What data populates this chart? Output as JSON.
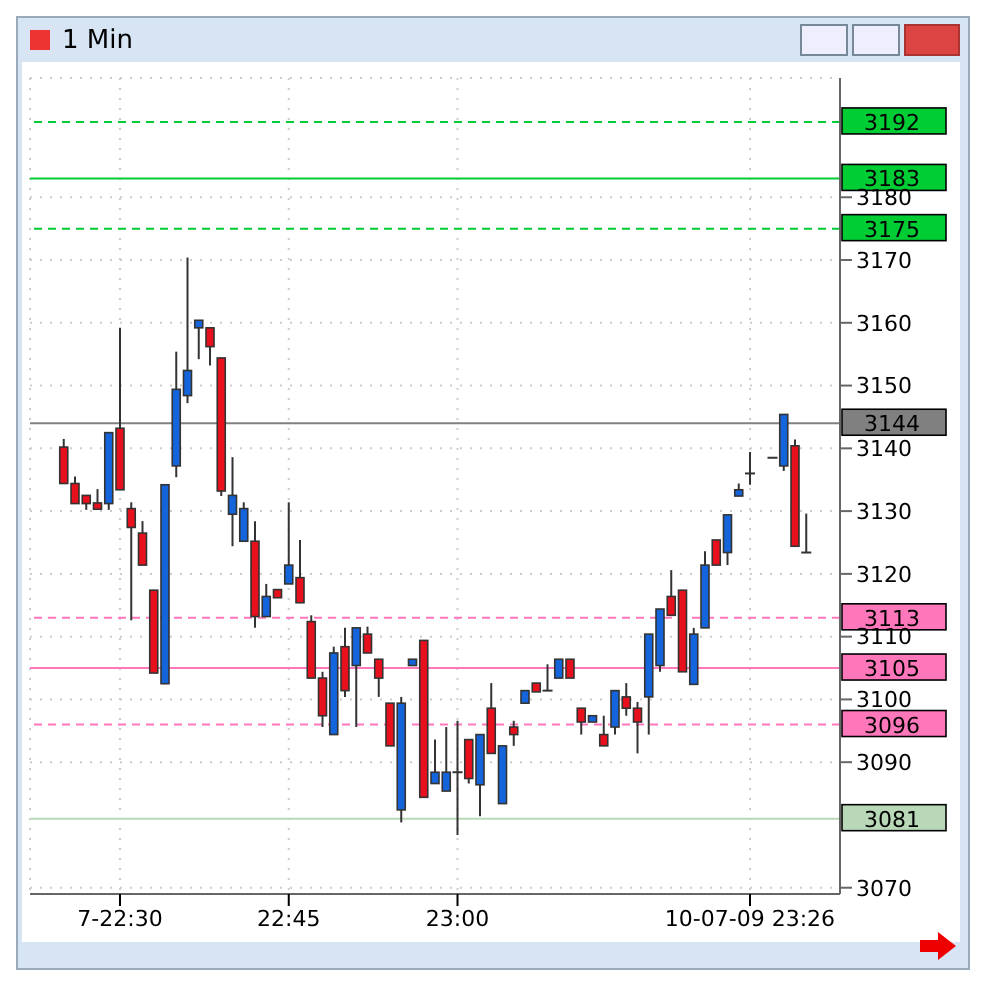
{
  "chart_data": {
    "type": "candlestick",
    "title": "1 Min",
    "categories": [
      null,
      null,
      null,
      null,
      null,
      "7-22:30",
      null,
      null,
      null,
      null,
      null,
      null,
      null,
      null,
      null,
      null,
      null,
      null,
      null,
      null,
      "22:45",
      null,
      null,
      null,
      null,
      null,
      null,
      null,
      null,
      null,
      null,
      null,
      null,
      null,
      null,
      "23:00",
      null,
      null,
      null,
      null,
      null,
      null,
      null,
      null,
      null,
      null,
      null,
      null,
      null,
      null,
      null,
      null,
      null,
      null,
      null,
      null,
      null,
      null,
      null,
      null,
      null,
      "10-07-09 23:26",
      null,
      null,
      null,
      null,
      null
    ],
    "ohlc": [
      [
        3140.2,
        3141.5,
        3134.4,
        3134.4
      ],
      [
        3134.4,
        3135.5,
        3131.2,
        3131.2
      ],
      [
        3132.5,
        3132.5,
        3130.2,
        3131.2
      ],
      [
        3131.3,
        3133.5,
        3130.3,
        3130.3
      ],
      [
        3131.2,
        3142.5,
        3130.2,
        3142.5
      ],
      [
        3143.2,
        3159.2,
        3133.4,
        3133.4
      ],
      [
        3130.4,
        3131.4,
        3112.6,
        3127.4
      ],
      [
        3126.5,
        3128.4,
        3121.4,
        3121.4
      ],
      [
        3117.4,
        3117.4,
        3104.2,
        3104.2
      ],
      [
        3102.5,
        3134.2,
        3102.5,
        3134.2
      ],
      [
        3137.2,
        3155.4,
        3135.4,
        3149.4
      ],
      [
        3148.4,
        3170.4,
        3147.2,
        3152.4
      ],
      [
        3159.2,
        3160.4,
        3154.2,
        3160.4
      ],
      [
        3159.2,
        3159.2,
        3153.2,
        3156.2
      ],
      [
        3154.4,
        3154.4,
        3132.4,
        3133.2
      ],
      [
        3129.5,
        3138.6,
        3124.4,
        3132.5
      ],
      [
        3125.2,
        3131.4,
        3125.2,
        3130.4
      ],
      [
        3125.2,
        3128.4,
        3111.4,
        3113.2
      ],
      [
        3113.2,
        3118.4,
        3113.2,
        3116.4
      ],
      [
        3117.5,
        3117.5,
        3116.2,
        3116.2
      ],
      [
        3118.4,
        3131.4,
        3118.4,
        3121.4
      ],
      [
        3119.4,
        3125.4,
        3115.4,
        3115.4
      ],
      [
        3112.4,
        3113.4,
        3103.4,
        3103.4
      ],
      [
        3103.4,
        3104.4,
        3095.6,
        3097.4
      ],
      [
        3094.4,
        3108.4,
        3094.4,
        3107.4
      ],
      [
        3108.4,
        3111.4,
        3100.4,
        3101.4
      ],
      [
        3105.4,
        3111.4,
        3095.6,
        3111.4
      ],
      [
        3110.4,
        3111.6,
        3107.4,
        3107.4
      ],
      [
        3106.4,
        3106.4,
        3100.4,
        3103.4
      ],
      [
        3099.4,
        3099.4,
        3092.6,
        3092.6
      ],
      [
        3082.4,
        3100.4,
        3080.4,
        3099.4
      ],
      [
        3105.4,
        3106.4,
        3105.4,
        3106.4
      ],
      [
        3109.4,
        3109.4,
        3084.4,
        3084.4
      ],
      [
        3086.6,
        3093.6,
        3086.6,
        3088.4
      ],
      [
        3085.4,
        3095.6,
        3085.4,
        3088.4
      ],
      [
        3088.4,
        3096.6,
        3078.4,
        3088.4
      ],
      [
        3093.6,
        3093.6,
        3086.6,
        3087.4
      ],
      [
        3086.4,
        3094.4,
        3081.4,
        3094.4
      ],
      [
        3098.6,
        3102.6,
        3091.4,
        3091.4
      ],
      [
        3083.4,
        3092.6,
        3083.4,
        3092.6
      ],
      [
        3095.6,
        3096.6,
        3092.6,
        3094.4
      ],
      [
        3099.4,
        3101.4,
        3099.4,
        3101.4
      ],
      [
        3102.6,
        3102.6,
        3101.2,
        3101.2
      ],
      [
        3101.4,
        3105.6,
        3101.4,
        3101.4
      ],
      [
        3103.4,
        3106.4,
        3103.4,
        3106.4
      ],
      [
        3106.4,
        3106.4,
        3103.4,
        3103.4
      ],
      [
        3098.6,
        3098.6,
        3094.4,
        3096.4
      ],
      [
        3096.4,
        3097.4,
        3096.4,
        3097.4
      ],
      [
        3094.4,
        3097.4,
        3092.6,
        3092.6
      ],
      [
        3095.6,
        3101.4,
        3094.4,
        3101.4
      ],
      [
        3100.4,
        3102.6,
        3097.4,
        3098.6
      ],
      [
        3098.6,
        3099.6,
        3091.4,
        3096.4
      ],
      [
        3100.4,
        3110.4,
        3094.4,
        3110.4
      ],
      [
        3105.4,
        3114.4,
        3104.4,
        3114.4
      ],
      [
        3116.4,
        3120.6,
        3113.4,
        3113.4
      ],
      [
        3117.4,
        3117.4,
        3104.4,
        3104.4
      ],
      [
        3102.4,
        3111.4,
        3102.4,
        3110.4
      ],
      [
        3111.4,
        3123.6,
        3111.4,
        3121.4
      ],
      [
        3125.4,
        3125.4,
        3121.4,
        3121.4
      ],
      [
        3123.4,
        3129.4,
        3121.4,
        3129.4
      ],
      [
        3132.4,
        3134.4,
        3132.4,
        3133.4
      ],
      [
        3136.0,
        3139.4,
        3134.2,
        3136.0
      ],
      null,
      [
        3138.5,
        3138.5,
        3138.5,
        3138.5
      ],
      [
        3137.2,
        3145.4,
        3136.4,
        3145.4
      ],
      [
        3140.4,
        3141.4,
        3124.4,
        3124.4
      ],
      [
        3123.4,
        3129.6,
        3123.4,
        3123.4
      ]
    ],
    "colors": [
      "#e8101c",
      "#e8101c",
      "#e8101c",
      "#e8101c",
      "#1464dc",
      "#e8101c",
      "#e8101c",
      "#e8101c",
      "#e8101c",
      "#1464dc",
      "#1464dc",
      "#1464dc",
      "#1464dc",
      "#e8101c",
      "#e8101c",
      "#1464dc",
      "#1464dc",
      "#e8101c",
      "#1464dc",
      "#e8101c",
      "#1464dc",
      "#e8101c",
      "#e8101c",
      "#e8101c",
      "#1464dc",
      "#e8101c",
      "#1464dc",
      "#e8101c",
      "#e8101c",
      "#e8101c",
      "#1464dc",
      "#1464dc",
      "#e8101c",
      "#1464dc",
      "#1464dc",
      "#333333",
      "#e8101c",
      "#1464dc",
      "#e8101c",
      "#1464dc",
      "#e8101c",
      "#1464dc",
      "#e8101c",
      "#333333",
      "#1464dc",
      "#e8101c",
      "#e8101c",
      "#1464dc",
      "#e8101c",
      "#1464dc",
      "#e8101c",
      "#e8101c",
      "#1464dc",
      "#1464dc",
      "#e8101c",
      "#e8101c",
      "#1464dc",
      "#1464dc",
      "#e8101c",
      "#1464dc",
      "#1464dc",
      "#333333",
      null,
      "#333333",
      "#1464dc",
      "#e8101c",
      "#333333"
    ],
    "ylim": [
      3069,
      3199
    ],
    "yticks": [
      3070,
      3090,
      3100,
      3110,
      3120,
      3130,
      3140,
      3150,
      3160,
      3170,
      3180
    ],
    "grid": true,
    "ref_lines": [
      {
        "axis": "y",
        "value": 3192,
        "label": "3192",
        "color": "#00cc33",
        "line_style": "dashed"
      },
      {
        "axis": "y",
        "value": 3183,
        "label": "3183",
        "color": "#00cc33",
        "line_style": "solid"
      },
      {
        "axis": "y",
        "value": 3175,
        "label": "3175",
        "color": "#00cc33",
        "line_style": "dashed"
      },
      {
        "axis": "y",
        "value": 3144,
        "label": "3144",
        "color": "#808080",
        "line_style": "solid"
      },
      {
        "axis": "y",
        "value": 3113,
        "label": "3113",
        "color": "#ff77bb",
        "line_style": "dashed"
      },
      {
        "axis": "y",
        "value": 3105,
        "label": "3105",
        "color": "#ff77bb",
        "line_style": "solid"
      },
      {
        "axis": "y",
        "value": 3096,
        "label": "3096",
        "color": "#ff77bb",
        "line_style": "dashed"
      },
      {
        "axis": "y",
        "value": 3081,
        "label": "3081",
        "color": "#b8d8b8",
        "line_style": "solid"
      }
    ]
  }
}
